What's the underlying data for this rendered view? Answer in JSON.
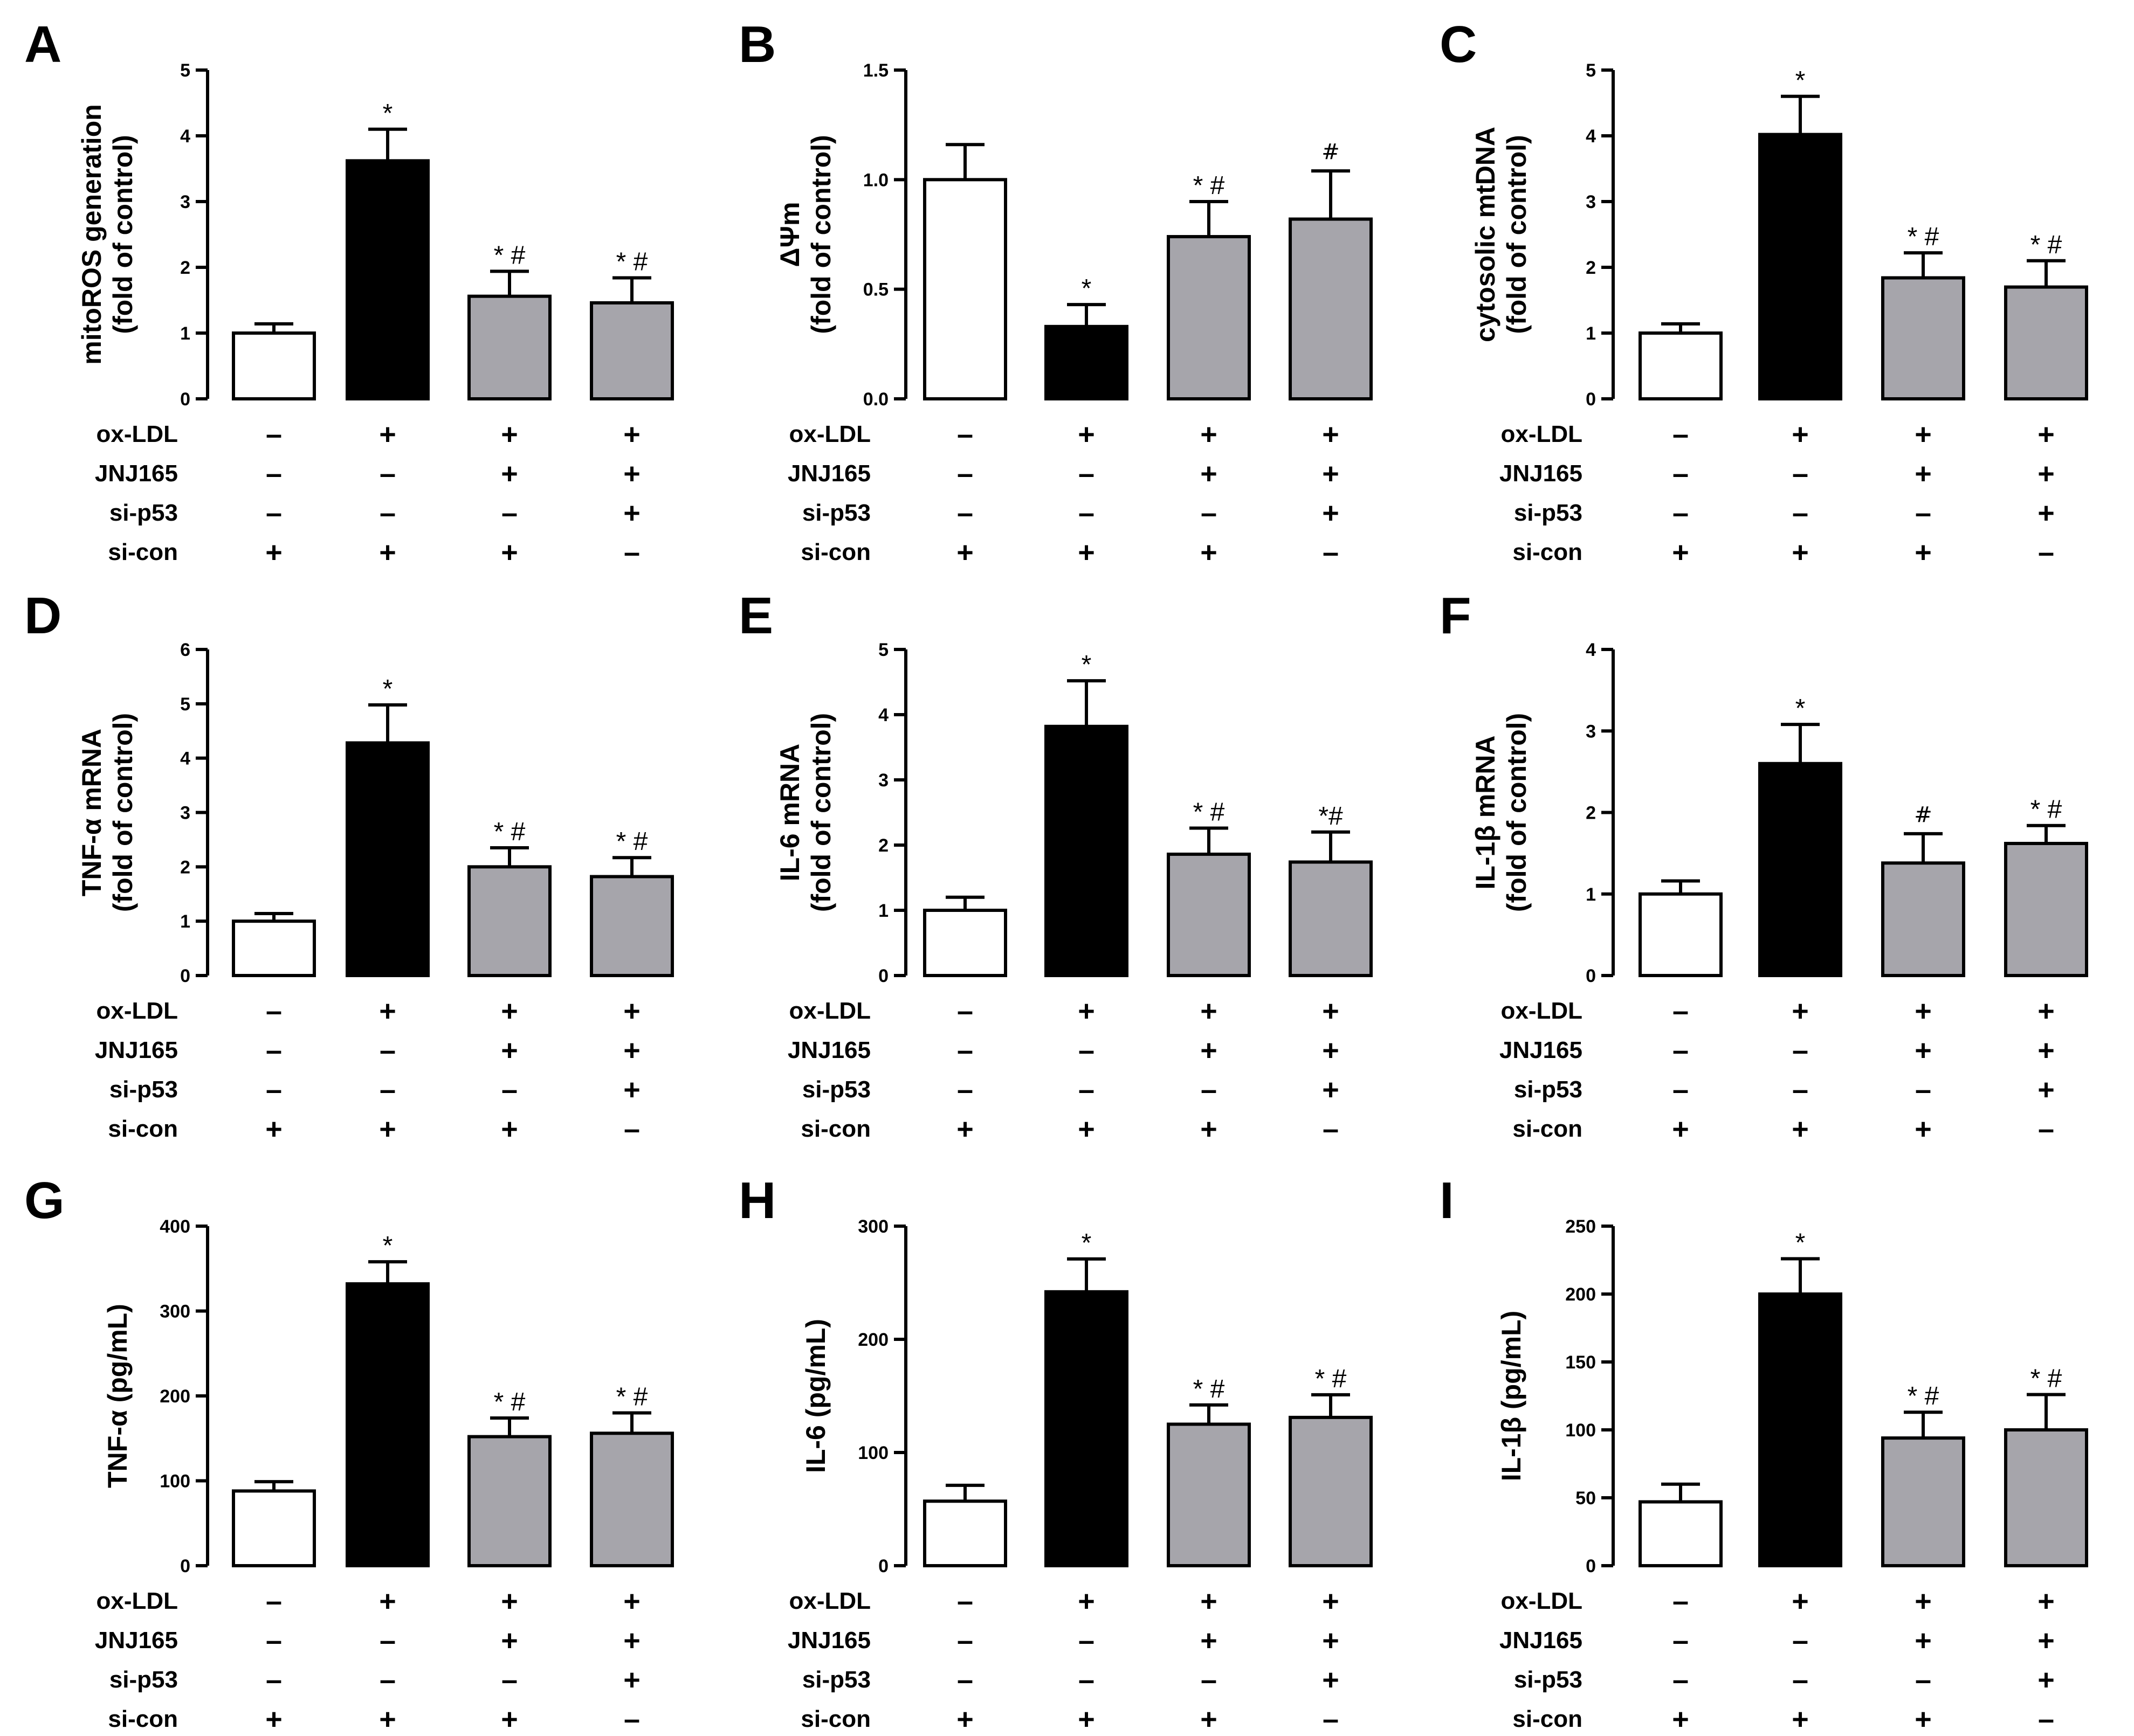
{
  "chart_data": [
    {
      "panel": "A",
      "type": "bar",
      "ylabel_lines": [
        "mitoROS generation",
        "(fold of control)"
      ],
      "ylim": [
        0,
        5
      ],
      "yticks": [
        "0",
        "1",
        "2",
        "3",
        "4",
        "5"
      ],
      "values": [
        1.0,
        3.62,
        1.56,
        1.46
      ],
      "errors": [
        0.14,
        0.48,
        0.38,
        0.38
      ],
      "fills": [
        "#ffffff",
        "#000000",
        "#a6a5ab",
        "#a6a5ab"
      ],
      "annotations": [
        "",
        "*",
        "* #",
        "* #"
      ]
    },
    {
      "panel": "B",
      "type": "bar",
      "ylabel_lines": [
        "ΔΨm",
        "(fold of control)"
      ],
      "ylim": [
        0,
        1.5
      ],
      "yticks": [
        "0.0",
        "0.5",
        "1.0",
        "1.5"
      ],
      "values": [
        1.0,
        0.33,
        0.74,
        0.82
      ],
      "errors": [
        0.16,
        0.1,
        0.16,
        0.22
      ],
      "fills": [
        "#ffffff",
        "#000000",
        "#a6a5ab",
        "#a6a5ab"
      ],
      "annotations": [
        "",
        "*",
        "* #",
        "#"
      ]
    },
    {
      "panel": "C",
      "type": "bar",
      "ylabel_lines": [
        "cytosolic mtDNA",
        "(fold of control)"
      ],
      "ylim": [
        0,
        5
      ],
      "yticks": [
        "0",
        "1",
        "2",
        "3",
        "4",
        "5"
      ],
      "values": [
        1.0,
        4.02,
        1.84,
        1.7
      ],
      "errors": [
        0.14,
        0.58,
        0.38,
        0.4
      ],
      "fills": [
        "#ffffff",
        "#000000",
        "#a6a5ab",
        "#a6a5ab"
      ],
      "annotations": [
        "",
        "*",
        "* #",
        "* #"
      ]
    },
    {
      "panel": "D",
      "type": "bar",
      "ylabel_lines": [
        "TNF-α mRNA",
        "(fold of control)"
      ],
      "ylim": [
        0,
        6
      ],
      "yticks": [
        "0",
        "1",
        "2",
        "3",
        "4",
        "5",
        "6"
      ],
      "values": [
        1.0,
        4.28,
        2.0,
        1.82
      ],
      "errors": [
        0.14,
        0.7,
        0.35,
        0.35
      ],
      "fills": [
        "#ffffff",
        "#000000",
        "#a6a5ab",
        "#a6a5ab"
      ],
      "annotations": [
        "",
        "*",
        "* #",
        "* #"
      ]
    },
    {
      "panel": "E",
      "type": "bar",
      "ylabel_lines": [
        "IL-6 mRNA",
        "(fold of control)"
      ],
      "ylim": [
        0,
        5
      ],
      "yticks": [
        "0",
        "1",
        "2",
        "3",
        "4",
        "5"
      ],
      "values": [
        1.0,
        3.82,
        1.86,
        1.74
      ],
      "errors": [
        0.2,
        0.7,
        0.4,
        0.46
      ],
      "fills": [
        "#ffffff",
        "#000000",
        "#a6a5ab",
        "#a6a5ab"
      ],
      "annotations": [
        "",
        "*",
        "* #",
        "*#"
      ]
    },
    {
      "panel": "F",
      "type": "bar",
      "ylabel_lines": [
        "IL-1β mRNA",
        "(fold of control)"
      ],
      "ylim": [
        0,
        4
      ],
      "yticks": [
        "0",
        "1",
        "2",
        "3",
        "4"
      ],
      "values": [
        1.0,
        2.6,
        1.38,
        1.62
      ],
      "errors": [
        0.16,
        0.48,
        0.36,
        0.22
      ],
      "fills": [
        "#ffffff",
        "#000000",
        "#a6a5ab",
        "#a6a5ab"
      ],
      "annotations": [
        "",
        "*",
        "#",
        "* #"
      ]
    },
    {
      "panel": "G",
      "type": "bar",
      "ylabel_lines": [
        "TNF-α (pg/mL)"
      ],
      "ylim": [
        0,
        400
      ],
      "yticks": [
        "0",
        "100",
        "200",
        "300",
        "400"
      ],
      "values": [
        88,
        332,
        152,
        156
      ],
      "errors": [
        11,
        26,
        22,
        24
      ],
      "fills": [
        "#ffffff",
        "#000000",
        "#a6a5ab",
        "#a6a5ab"
      ],
      "annotations": [
        "",
        "*",
        "* #",
        "* #"
      ]
    },
    {
      "panel": "H",
      "type": "bar",
      "ylabel_lines": [
        "IL-6 (pg/mL)"
      ],
      "ylim": [
        0,
        300
      ],
      "yticks": [
        "0",
        "100",
        "200",
        "300"
      ],
      "values": [
        57,
        242,
        125,
        131
      ],
      "errors": [
        14,
        29,
        17,
        20
      ],
      "fills": [
        "#ffffff",
        "#000000",
        "#a6a5ab",
        "#a6a5ab"
      ],
      "annotations": [
        "",
        "*",
        "* #",
        "* #"
      ]
    },
    {
      "panel": "I",
      "type": "bar",
      "ylabel_lines": [
        "IL-1β (pg/mL)"
      ],
      "ylim": [
        0,
        250
      ],
      "yticks": [
        "0",
        "50",
        "100",
        "150",
        "200",
        "250"
      ],
      "values": [
        47,
        200,
        94,
        100
      ],
      "errors": [
        13,
        26,
        19,
        26
      ],
      "fills": [
        "#ffffff",
        "#000000",
        "#a6a5ab",
        "#a6a5ab"
      ],
      "annotations": [
        "",
        "*",
        "* #",
        "* #"
      ]
    }
  ],
  "conditions": {
    "labels": [
      "ox-LDL",
      "JNJ165",
      "si-p53",
      "si-con"
    ],
    "signs": [
      [
        "–",
        "+",
        "+",
        "+"
      ],
      [
        "–",
        "–",
        "+",
        "+"
      ],
      [
        "–",
        "–",
        "–",
        "+"
      ],
      [
        "+",
        "+",
        "+",
        "–"
      ]
    ]
  }
}
